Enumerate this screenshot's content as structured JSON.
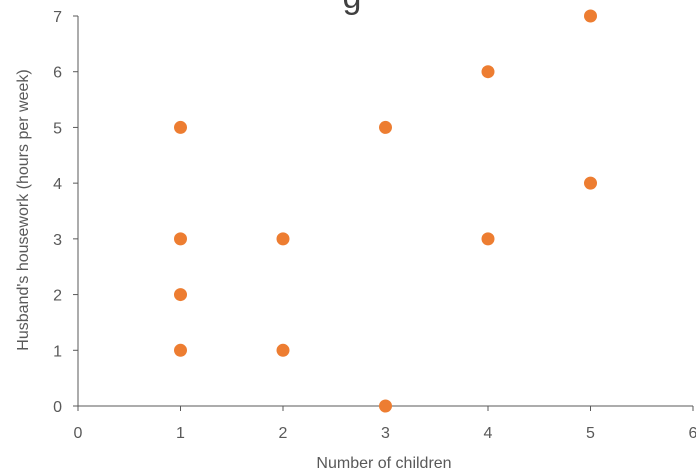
{
  "chart_data": {
    "type": "scatter",
    "title": "g",
    "xlabel": "Number of children",
    "ylabel": "Husband's housework (hours per week)",
    "xlim": [
      0,
      6
    ],
    "ylim": [
      0,
      7
    ],
    "xticks": [
      "0",
      "1",
      "2",
      "3",
      "4",
      "5",
      "6"
    ],
    "yticks": [
      "0",
      "1",
      "2",
      "3",
      "4",
      "5",
      "6",
      "7"
    ],
    "grid": false,
    "legend": "none",
    "marker_color": "#ED7D31",
    "axis_color": "#595959",
    "points": [
      {
        "x": 1,
        "y": 1
      },
      {
        "x": 1,
        "y": 2
      },
      {
        "x": 1,
        "y": 3
      },
      {
        "x": 1,
        "y": 5
      },
      {
        "x": 2,
        "y": 1
      },
      {
        "x": 2,
        "y": 3
      },
      {
        "x": 3,
        "y": 0
      },
      {
        "x": 3,
        "y": 5
      },
      {
        "x": 4,
        "y": 3
      },
      {
        "x": 4,
        "y": 6
      },
      {
        "x": 5,
        "y": 4
      },
      {
        "x": 5,
        "y": 7
      }
    ]
  }
}
